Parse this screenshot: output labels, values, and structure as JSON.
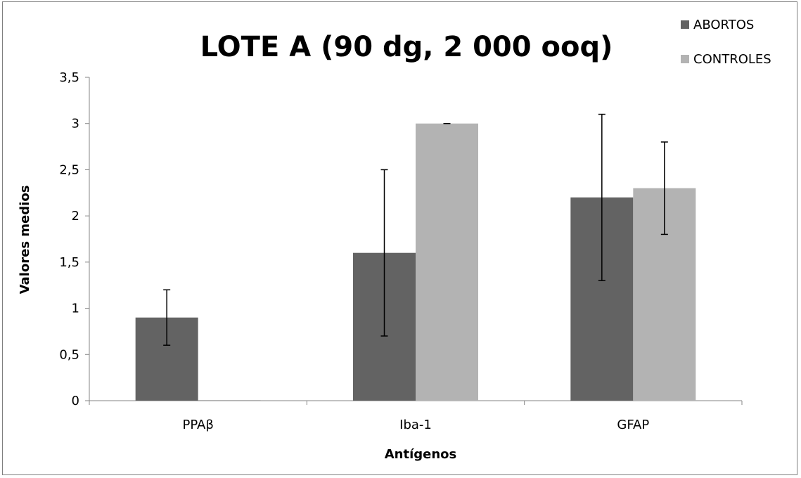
{
  "chart_data": {
    "type": "bar",
    "title": "LOTE A (90 dg, 2 000 ooq)",
    "xlabel": "Antígenos",
    "ylabel": "Valores medios",
    "categories": [
      "PPAβ",
      "Iba-1",
      "GFAP"
    ],
    "ylim": [
      0,
      3.5
    ],
    "yticks": [
      "0",
      "0,5",
      "1",
      "1,5",
      "2",
      "2,5",
      "3",
      "3,5"
    ],
    "grid": false,
    "legend_position": "top-right",
    "series": [
      {
        "name": "ABORTOS",
        "color": "#636363",
        "values": [
          0.9,
          1.6,
          2.2
        ],
        "error_low": [
          0.6,
          0.7,
          1.3
        ],
        "error_high": [
          1.2,
          2.5,
          3.1
        ]
      },
      {
        "name": "CONTROLES",
        "color": "#b3b3b3",
        "values": [
          0,
          3.0,
          2.3
        ],
        "error_low": [
          0,
          3.0,
          1.8
        ],
        "error_high": [
          0,
          3.0,
          2.8
        ]
      }
    ]
  }
}
